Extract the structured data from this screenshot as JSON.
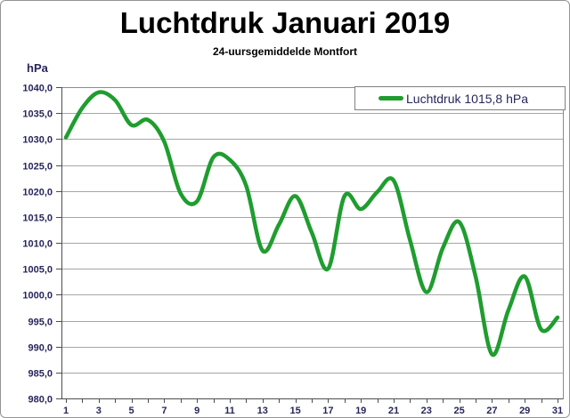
{
  "header": {
    "title": "Luchtdruk Januari 2019",
    "subtitle": "24-uursgemiddelde Montfort"
  },
  "legend": {
    "label": "Luchtdruk 1015,8 hPa"
  },
  "colors": {
    "line_green": "#1f9d2f",
    "axis_text": "#26265c",
    "grid": "#a6a6a6",
    "plot_border": "#8c8c8c",
    "axis_line": "#4d4d4d",
    "background": "#ffffff",
    "title_color": "#000000"
  },
  "chart_data": {
    "type": "line",
    "title": "Luchtdruk Januari 2019",
    "subtitle": "24-uursgemiddelde Montfort",
    "xlabel": "",
    "ylabel": "hPa",
    "legend_entries": [
      "Luchtdruk 1015,8 hPa"
    ],
    "legend_position": "top-right",
    "grid": "horizontal",
    "smooth": true,
    "ylim": [
      980,
      1040
    ],
    "ytick_step": 5,
    "yticks": [
      1040,
      1035,
      1030,
      1025,
      1020,
      1015,
      1010,
      1005,
      1000,
      995,
      990,
      985,
      980
    ],
    "ytick_labels": [
      "1040,0",
      "1035,0",
      "1030,0",
      "1025,0",
      "1020,0",
      "1015,0",
      "1010,0",
      "1005,0",
      "1000,0",
      "995,0",
      "990,0",
      "985,0",
      "980,0"
    ],
    "xlim": [
      1,
      31
    ],
    "x": [
      1,
      2,
      3,
      4,
      5,
      6,
      7,
      8,
      9,
      10,
      11,
      12,
      13,
      14,
      15,
      16,
      17,
      18,
      19,
      20,
      21,
      22,
      23,
      24,
      25,
      26,
      27,
      28,
      29,
      30,
      31
    ],
    "xtick_label_days": [
      1,
      3,
      5,
      7,
      9,
      11,
      13,
      15,
      17,
      19,
      21,
      23,
      25,
      27,
      29,
      31
    ],
    "xtick_labels": [
      "1",
      "3",
      "5",
      "7",
      "9",
      "11",
      "13",
      "15",
      "17",
      "19",
      "21",
      "23",
      "25",
      "27",
      "29",
      "31"
    ],
    "series": [
      {
        "name": "Luchtdruk 1015,8 hPa",
        "color": "#1f9d2f",
        "values": [
          1030.3,
          1036.0,
          1039.0,
          1037.5,
          1032.7,
          1033.7,
          1029.5,
          1019.5,
          1018.0,
          1026.5,
          1026.0,
          1021.0,
          1008.5,
          1013.5,
          1019.0,
          1012.0,
          1005.0,
          1019.0,
          1016.5,
          1019.8,
          1022.0,
          1010.5,
          1000.5,
          1009.0,
          1014.0,
          1003.5,
          988.5,
          997.0,
          1003.5,
          993.3,
          995.6
        ]
      }
    ]
  }
}
